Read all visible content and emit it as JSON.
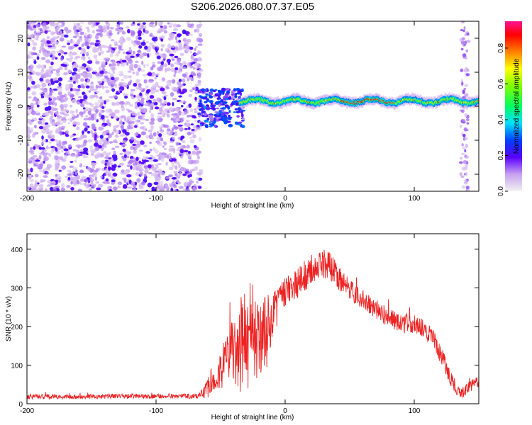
{
  "title": "S206.2026.080.07.37.E05",
  "chart_data": [
    {
      "id": "spectrogram",
      "type": "heatmap",
      "title": "S206.2026.080.07.37.E05",
      "xlabel": "Height of straight line (km)",
      "ylabel": "Frequency (Hz)",
      "xlim": [
        -200,
        150
      ],
      "ylim": [
        -25,
        25
      ],
      "xticks": [
        -200,
        -100,
        0,
        100
      ],
      "yticks": [
        -20,
        -10,
        0,
        10,
        20
      ],
      "xtick_labels": [
        "-200",
        "-100",
        "0",
        "100"
      ],
      "ytick_labels": [
        "-20",
        "-10",
        "0",
        "10",
        "20"
      ],
      "colorbar": {
        "label": "Normalized spectral amplitude",
        "range": [
          0.0,
          0.95
        ],
        "ticks": [
          0.0,
          0.2,
          0.4,
          0.6,
          0.8
        ],
        "tick_labels": [
          "0.0",
          "0.2",
          "0.4",
          "0.6",
          "0.8"
        ]
      },
      "regions": [
        {
          "name": "noise",
          "x_range": [
            -200,
            -65
          ],
          "freq_range": [
            -25,
            25
          ],
          "amplitude": [
            0.0,
            0.1
          ]
        },
        {
          "name": "onset-scatter",
          "x_range": [
            -67,
            -32
          ],
          "freq_range": [
            -6,
            5
          ],
          "amplitude": [
            0.1,
            0.35
          ]
        },
        {
          "name": "signal-band",
          "x_range": [
            -35,
            150
          ],
          "freq_center": 1.5,
          "bandwidth": 3,
          "amplitude": [
            0.3,
            0.95
          ]
        },
        {
          "name": "edge-noise",
          "x_range": [
            136,
            142
          ],
          "freq_range": [
            -25,
            25
          ],
          "amplitude": [
            0.0,
            0.1
          ]
        }
      ]
    },
    {
      "id": "snr",
      "type": "line",
      "xlabel": "Height of straight line (km)",
      "ylabel": "SNR (10 * v/v)",
      "xlim": [
        -200,
        150
      ],
      "ylim": [
        0,
        440
      ],
      "xticks": [
        -200,
        -100,
        0,
        100
      ],
      "yticks": [
        0,
        100,
        200,
        300,
        400
      ],
      "xtick_labels": [
        "-200",
        "-100",
        "0",
        "100"
      ],
      "ytick_labels": [
        "0",
        "100",
        "200",
        "300",
        "400"
      ],
      "color": "#ee2222",
      "series": [
        {
          "name": "SNR",
          "x": [
            -200,
            -180,
            -160,
            -140,
            -120,
            -100,
            -80,
            -66,
            -60,
            -55,
            -50,
            -45,
            -40,
            -35,
            -30,
            -25,
            -20,
            -15,
            -10,
            -5,
            0,
            5,
            10,
            15,
            20,
            25,
            30,
            35,
            40,
            45,
            50,
            55,
            60,
            65,
            70,
            75,
            80,
            85,
            90,
            95,
            100,
            105,
            110,
            115,
            120,
            125,
            130,
            135,
            140,
            145,
            150
          ],
          "values": [
            18,
            19,
            18,
            19,
            20,
            19,
            20,
            21,
            40,
            75,
            85,
            110,
            140,
            160,
            190,
            180,
            165,
            180,
            230,
            260,
            290,
            300,
            310,
            330,
            345,
            360,
            365,
            355,
            330,
            310,
            295,
            280,
            270,
            255,
            245,
            235,
            225,
            215,
            205,
            210,
            205,
            200,
            185,
            165,
            130,
            90,
            55,
            25,
            35,
            50,
            55
          ],
          "spread": [
            6,
            6,
            6,
            6,
            6,
            6,
            6,
            8,
            25,
            40,
            50,
            70,
            100,
            140,
            170,
            140,
            90,
            100,
            60,
            50,
            40,
            40,
            40,
            40,
            40,
            40,
            40,
            35,
            35,
            30,
            30,
            30,
            25,
            25,
            25,
            25,
            25,
            25,
            25,
            25,
            25,
            25,
            25,
            25,
            25,
            25,
            20,
            15,
            15,
            15,
            15
          ]
        }
      ]
    }
  ]
}
